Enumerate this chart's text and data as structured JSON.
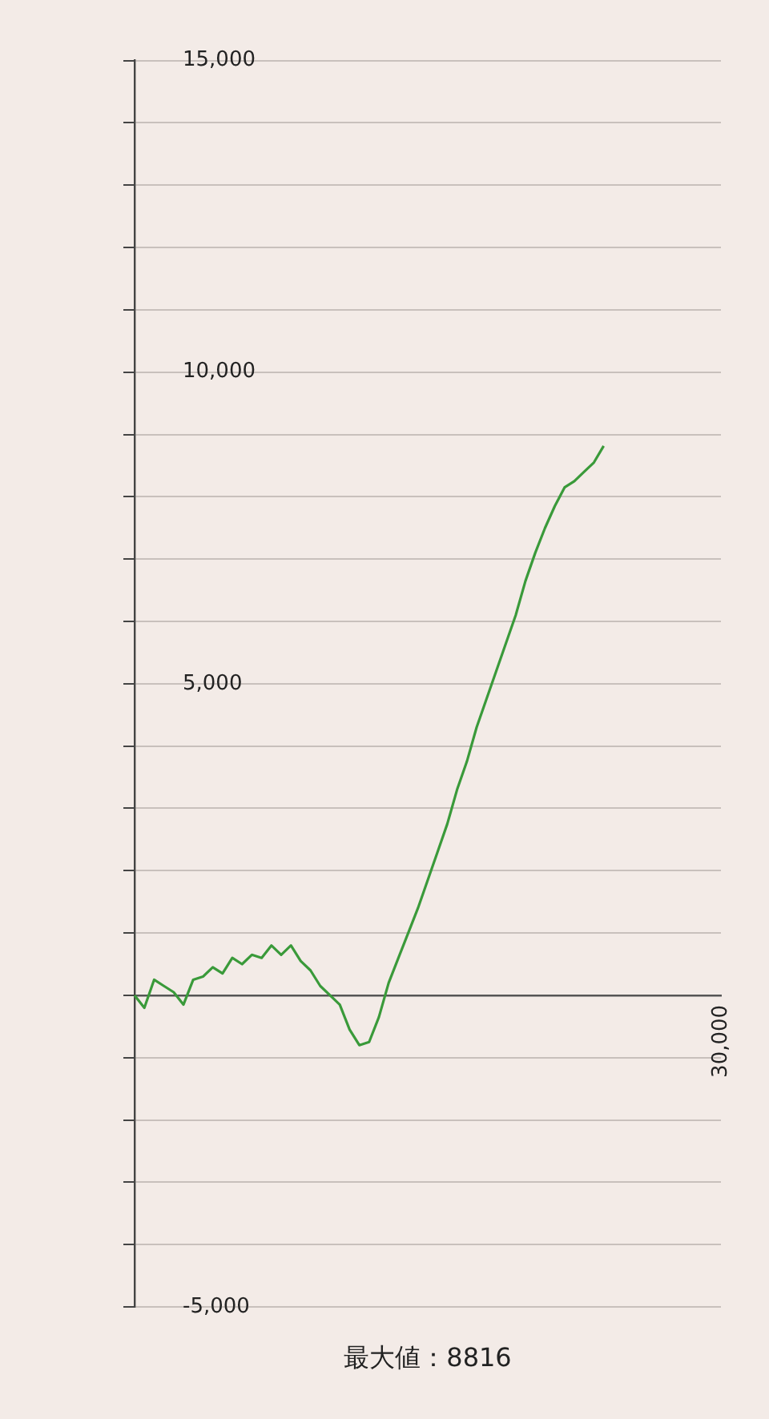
{
  "chart_data": {
    "type": "line",
    "marker": "none",
    "grid": "y",
    "categories": [
      null,
      null,
      null,
      null,
      null,
      null,
      null,
      null,
      null,
      null,
      null,
      null,
      null,
      null,
      null,
      null,
      null,
      null,
      null,
      null,
      null,
      null,
      null,
      null,
      null,
      null,
      null,
      null,
      null,
      null,
      null,
      null,
      null,
      null,
      null,
      null,
      null,
      null,
      null,
      null,
      null,
      null,
      null,
      null,
      null,
      null,
      null,
      null,
      null,
      null,
      null,
      null,
      null,
      null,
      null,
      null,
      null,
      null,
      null,
      null,
      null
    ],
    "values": [
      0,
      -200,
      250,
      150,
      50,
      -150,
      250,
      300,
      450,
      350,
      600,
      500,
      650,
      600,
      800,
      650,
      800,
      550,
      400,
      150,
      0,
      -150,
      -550,
      -800,
      -750,
      -350,
      200,
      600,
      1000,
      1400,
      1850,
      2300,
      2750,
      3300,
      3750,
      4300,
      4750,
      5200,
      5650,
      6100,
      6650,
      7100,
      7500,
      7850,
      8150,
      8250,
      8400,
      8550,
      8816,
      null,
      null,
      null,
      null,
      null,
      null,
      null,
      null,
      null,
      null,
      null,
      null
    ],
    "color": "#3a9a3a",
    "ylim": [
      -5000,
      15000
    ],
    "yticks": [
      {
        "value": -5000,
        "label": "-5,000"
      },
      {
        "value": -4000,
        "label": null
      },
      {
        "value": -3000,
        "label": null
      },
      {
        "value": -2000,
        "label": null
      },
      {
        "value": -1000,
        "label": null
      },
      {
        "value": 0,
        "label": null
      },
      {
        "value": 1000,
        "label": null
      },
      {
        "value": 2000,
        "label": null
      },
      {
        "value": 3000,
        "label": null
      },
      {
        "value": 4000,
        "label": null
      },
      {
        "value": 5000,
        "label": "5,000"
      },
      {
        "value": 6000,
        "label": null
      },
      {
        "value": 7000,
        "label": null
      },
      {
        "value": 8000,
        "label": null
      },
      {
        "value": 9000,
        "label": null
      },
      {
        "value": 10000,
        "label": "10,000"
      },
      {
        "value": 11000,
        "label": null
      },
      {
        "value": 12000,
        "label": null
      },
      {
        "value": 13000,
        "label": null
      },
      {
        "value": 14000,
        "label": null
      },
      {
        "value": 15000,
        "label": "15,000"
      }
    ],
    "annotations": [
      "最大値：8816",
      "30,000"
    ]
  }
}
